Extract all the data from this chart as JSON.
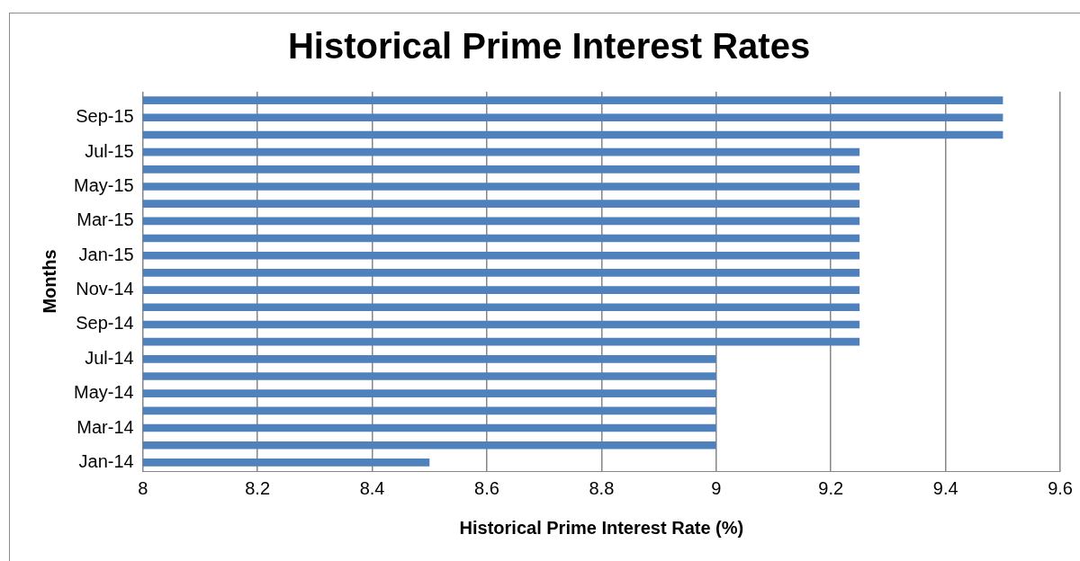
{
  "chart_data": {
    "type": "bar",
    "orientation": "horizontal",
    "title": "Historical Prime Interest Rates",
    "xlabel": "Historical Prime Interest Rate (%)",
    "ylabel": "Months",
    "categories": [
      null,
      "Sep-15",
      null,
      "Jul-15",
      null,
      "May-15",
      null,
      "Mar-15",
      null,
      "Jan-15",
      null,
      "Nov-14",
      null,
      "Sep-14",
      null,
      "Jul-14",
      null,
      "May-14",
      null,
      "Mar-14",
      null,
      "Jan-14"
    ],
    "values": [
      9.5,
      9.5,
      9.5,
      9.25,
      9.25,
      9.25,
      9.25,
      9.25,
      9.25,
      9.25,
      9.25,
      9.25,
      9.25,
      9.25,
      9.25,
      9,
      9,
      9,
      9,
      9,
      9,
      8.5
    ],
    "color": "#4f81bd",
    "xlim": [
      8,
      9.6
    ],
    "xticks": [
      8,
      8.2,
      8.4,
      8.6,
      8.8,
      9,
      9.2,
      9.4,
      9.6
    ],
    "grid": "x",
    "legend": false
  }
}
